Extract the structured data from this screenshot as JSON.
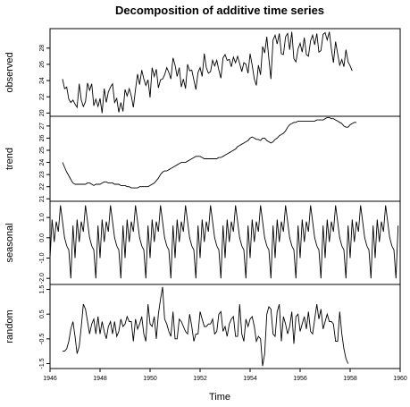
{
  "chart_data": {
    "type": "line",
    "title": "Decomposition of additive time series",
    "xlabel": "Time",
    "x_range": [
      1946,
      1960
    ],
    "x_ticks": [
      "1946",
      "1948",
      "1950",
      "1952",
      "1954",
      "1956",
      "1958",
      "1960"
    ],
    "panels": [
      {
        "name": "observed",
        "ylabel": "observed",
        "ylim": [
          19.6,
          30.4
        ],
        "y_ticks": [
          "20",
          "22",
          "24",
          "26",
          "28"
        ],
        "x_start": 1946.5,
        "values": [
          24.2,
          23.0,
          23.2,
          21.7,
          21.3,
          21.6,
          21.1,
          20.7,
          23.6,
          21.6,
          20.8,
          21.4,
          23.7,
          22.8,
          23.6,
          20.9,
          21.7,
          20.8,
          21.8,
          20.0,
          23.0,
          21.3,
          22.6,
          23.2,
          23.6,
          21.3,
          21.8,
          20.1,
          21.3,
          20.2,
          22.9,
          22.1,
          23.0,
          22.1,
          20.7,
          22.9,
          24.8,
          23.5,
          25.3,
          24.2,
          23.4,
          24.1,
          21.9,
          25.6,
          24.5,
          25.4,
          23.1,
          24.1,
          24.2,
          24.7,
          25.6,
          25.0,
          24.2,
          26.8,
          25.9,
          24.5,
          25.6,
          23.2,
          24.2,
          23.0,
          26.0,
          25.2,
          25.3,
          24.1,
          22.9,
          25.0,
          25.6,
          24.5,
          27.3,
          25.6,
          24.9,
          25.1,
          26.5,
          25.8,
          26.5,
          25.3,
          24.3,
          26.8,
          27.2,
          26.5,
          26.6,
          25.7,
          26.9,
          26.2,
          27.0,
          26.1,
          25.1,
          26.2,
          26.0,
          24.9,
          27.3,
          25.9,
          24.2,
          23.4,
          25.9,
          24.7,
          28.2,
          27.4,
          29.4,
          26.7,
          24.2,
          29.0,
          29.6,
          28.5,
          29.8,
          27.3,
          27.2,
          29.4,
          29.8,
          27.8,
          30.0,
          26.7,
          26.3,
          27.9,
          28.6,
          27.5,
          29.3,
          27.2,
          27.0,
          28.9,
          29.6,
          28.4,
          29.8,
          27.5,
          27.7,
          29.7,
          29.9,
          29.0,
          30.0,
          27.9,
          26.2,
          28.8,
          27.3,
          25.9,
          26.6,
          25.7,
          27.8,
          26.3,
          25.8,
          25.2
        ]
      },
      {
        "name": "trend",
        "ylabel": "trend",
        "ylim": [
          20.8,
          27.8
        ],
        "y_ticks": [
          "21",
          "22",
          "23",
          "24",
          "25",
          "26",
          "27"
        ],
        "x_start": 1946.5,
        "values": [
          24.0,
          23.6,
          23.2,
          22.9,
          22.6,
          22.3,
          22.2,
          22.2,
          22.2,
          22.2,
          22.2,
          22.2,
          22.3,
          22.3,
          22.2,
          22.1,
          22.2,
          22.2,
          22.2,
          22.3,
          22.4,
          22.4,
          22.3,
          22.3,
          22.3,
          22.2,
          22.2,
          22.2,
          22.1,
          22.1,
          22.1,
          22.0,
          22.0,
          21.9,
          21.9,
          21.9,
          21.9,
          22.0,
          22.0,
          22.0,
          22.0,
          22.0,
          22.1,
          22.2,
          22.3,
          22.5,
          22.7,
          23.0,
          23.2,
          23.3,
          23.3,
          23.4,
          23.5,
          23.6,
          23.7,
          23.8,
          23.9,
          24.0,
          24.0,
          24.0,
          24.1,
          24.2,
          24.3,
          24.4,
          24.5,
          24.5,
          24.5,
          24.4,
          24.3,
          24.3,
          24.3,
          24.3,
          24.3,
          24.3,
          24.3,
          24.4,
          24.4,
          24.5,
          24.6,
          24.7,
          24.8,
          24.9,
          25.0,
          25.1,
          25.3,
          25.4,
          25.5,
          25.6,
          25.7,
          25.8,
          26.0,
          26.1,
          26.0,
          25.9,
          25.9,
          25.8,
          26.0,
          26.0,
          25.8,
          25.7,
          25.6,
          25.7,
          25.9,
          26.0,
          26.2,
          26.3,
          26.4,
          26.6,
          26.9,
          27.1,
          27.2,
          27.3,
          27.3,
          27.4,
          27.4,
          27.4,
          27.4,
          27.4,
          27.4,
          27.4,
          27.4,
          27.4,
          27.5,
          27.5,
          27.5,
          27.5,
          27.6,
          27.7,
          27.7,
          27.6,
          27.6,
          27.5,
          27.4,
          27.3,
          27.2,
          27.0,
          26.9,
          26.9,
          27.1,
          27.2,
          27.3,
          27.3
        ]
      },
      {
        "name": "seasonal",
        "ylabel": "seasonal",
        "ylim": [
          -2.3,
          1.8
        ],
        "y_ticks": [
          "-2.0",
          "-1.0",
          "0.0",
          "1.0"
        ],
        "x_start": 1946.0,
        "values": [
          -1.0,
          0.9,
          -0.2,
          0.8,
          0.3,
          1.6,
          0.8,
          0.0,
          -0.4,
          -0.6,
          -2.0,
          0.6,
          -1.0,
          0.9,
          -0.2,
          0.8,
          0.3,
          1.6,
          0.8,
          0.0,
          -0.4,
          -0.6,
          -2.0,
          0.6,
          -1.0,
          0.9,
          -0.2,
          0.8,
          0.3,
          1.6,
          0.8,
          0.0,
          -0.4,
          -0.6,
          -2.0,
          0.6,
          -1.0,
          0.9,
          -0.2,
          0.8,
          0.3,
          1.6,
          0.8,
          0.0,
          -0.4,
          -0.6,
          -2.0,
          0.6,
          -1.0,
          0.9,
          -0.2,
          0.8,
          0.3,
          1.6,
          0.8,
          0.0,
          -0.4,
          -0.6,
          -2.0,
          0.6,
          -1.0,
          0.9,
          -0.2,
          0.8,
          0.3,
          1.6,
          0.8,
          0.0,
          -0.4,
          -0.6,
          -2.0,
          0.6,
          -1.0,
          0.9,
          -0.2,
          0.8,
          0.3,
          1.6,
          0.8,
          0.0,
          -0.4,
          -0.6,
          -2.0,
          0.6,
          -1.0,
          0.9,
          -0.2,
          0.8,
          0.3,
          1.6,
          0.8,
          0.0,
          -0.4,
          -0.6,
          -2.0,
          0.6,
          -1.0,
          0.9,
          -0.2,
          0.8,
          0.3,
          1.6,
          0.8,
          0.0,
          -0.4,
          -0.6,
          -2.0,
          0.6,
          -1.0,
          0.9,
          -0.2,
          0.8,
          0.3,
          1.6,
          0.8,
          0.0,
          -0.4,
          -0.6,
          -2.0,
          0.6,
          -1.0,
          0.9,
          -0.2,
          0.8,
          0.3,
          1.6,
          0.8,
          0.0,
          -0.4,
          -0.6,
          -2.0,
          0.6,
          -1.0,
          0.9,
          -0.2,
          0.8,
          0.3,
          1.6,
          0.8,
          0.0,
          -0.4,
          -0.6,
          -2.0,
          0.6,
          -1.0,
          0.9,
          -0.2,
          0.8,
          0.3,
          1.6,
          0.8,
          0.0,
          -0.4,
          -0.6,
          -2.0,
          0.6,
          -1.0,
          0.9,
          -0.2,
          0.8,
          0.3,
          1.6,
          0.8,
          0.0,
          -0.4,
          -0.6,
          -2.0,
          0.6
        ]
      },
      {
        "name": "random",
        "ylabel": "random",
        "ylim": [
          -1.7,
          1.7
        ],
        "y_ticks": [
          "-1.5",
          "-0.5",
          "0.5",
          "1.5"
        ],
        "x_start": 1946.5,
        "values": [
          -1.0,
          -1.0,
          -0.9,
          -0.6,
          -0.1,
          0.2,
          -0.4,
          -1.1,
          -0.8,
          0.0,
          0.9,
          0.7,
          0.2,
          -0.3,
          0.1,
          0.3,
          -0.3,
          0.4,
          -0.3,
          0.2,
          -0.2,
          -0.5,
          0.0,
          0.2,
          -0.3,
          0.2,
          -0.4,
          -0.2,
          0.3,
          0.0,
          0.1,
          0.4,
          0.2,
          0.2,
          -0.6,
          0.3,
          -0.1,
          0.1,
          0.4,
          -0.3,
          -0.6,
          0.9,
          0.1,
          0.0,
          0.4,
          -0.5,
          0.5,
          1.1,
          1.6,
          0.3,
          0.1,
          -0.2,
          -0.4,
          0.6,
          -0.5,
          -0.5,
          0.3,
          0.2,
          0.0,
          -0.2,
          -0.3,
          0.5,
          0.0,
          -0.6,
          -0.3,
          -0.3,
          0.6,
          0.3,
          0.0,
          0.0,
          0.1,
          0.1,
          0.3,
          -0.3,
          -0.2,
          0.5,
          0.6,
          -0.2,
          0.0,
          -0.4,
          0.1,
          0.3,
          0.4,
          -0.4,
          -0.4,
          0.9,
          -0.3,
          -0.6,
          0.3,
          0.0,
          0.3,
          0.4,
          0.0,
          -0.6,
          -0.4,
          -0.5,
          -1.6,
          -1.1,
          0.5,
          0.8,
          0.7,
          -0.3,
          -0.4,
          0.6,
          0.9,
          -0.6,
          0.4,
          0.1,
          -0.3,
          0.0,
          0.6,
          -0.7,
          0.4,
          0.5,
          -0.2,
          0.1,
          0.4,
          -0.1,
          0.6,
          -0.2,
          -0.3,
          0.3,
          0.9,
          0.3,
          0.7,
          -0.1,
          0.2,
          0.5,
          0.2,
          0.2,
          0.1,
          -0.6,
          -0.6,
          0.6,
          -0.3,
          -0.9,
          -1.3,
          -1.5
        ]
      }
    ]
  }
}
